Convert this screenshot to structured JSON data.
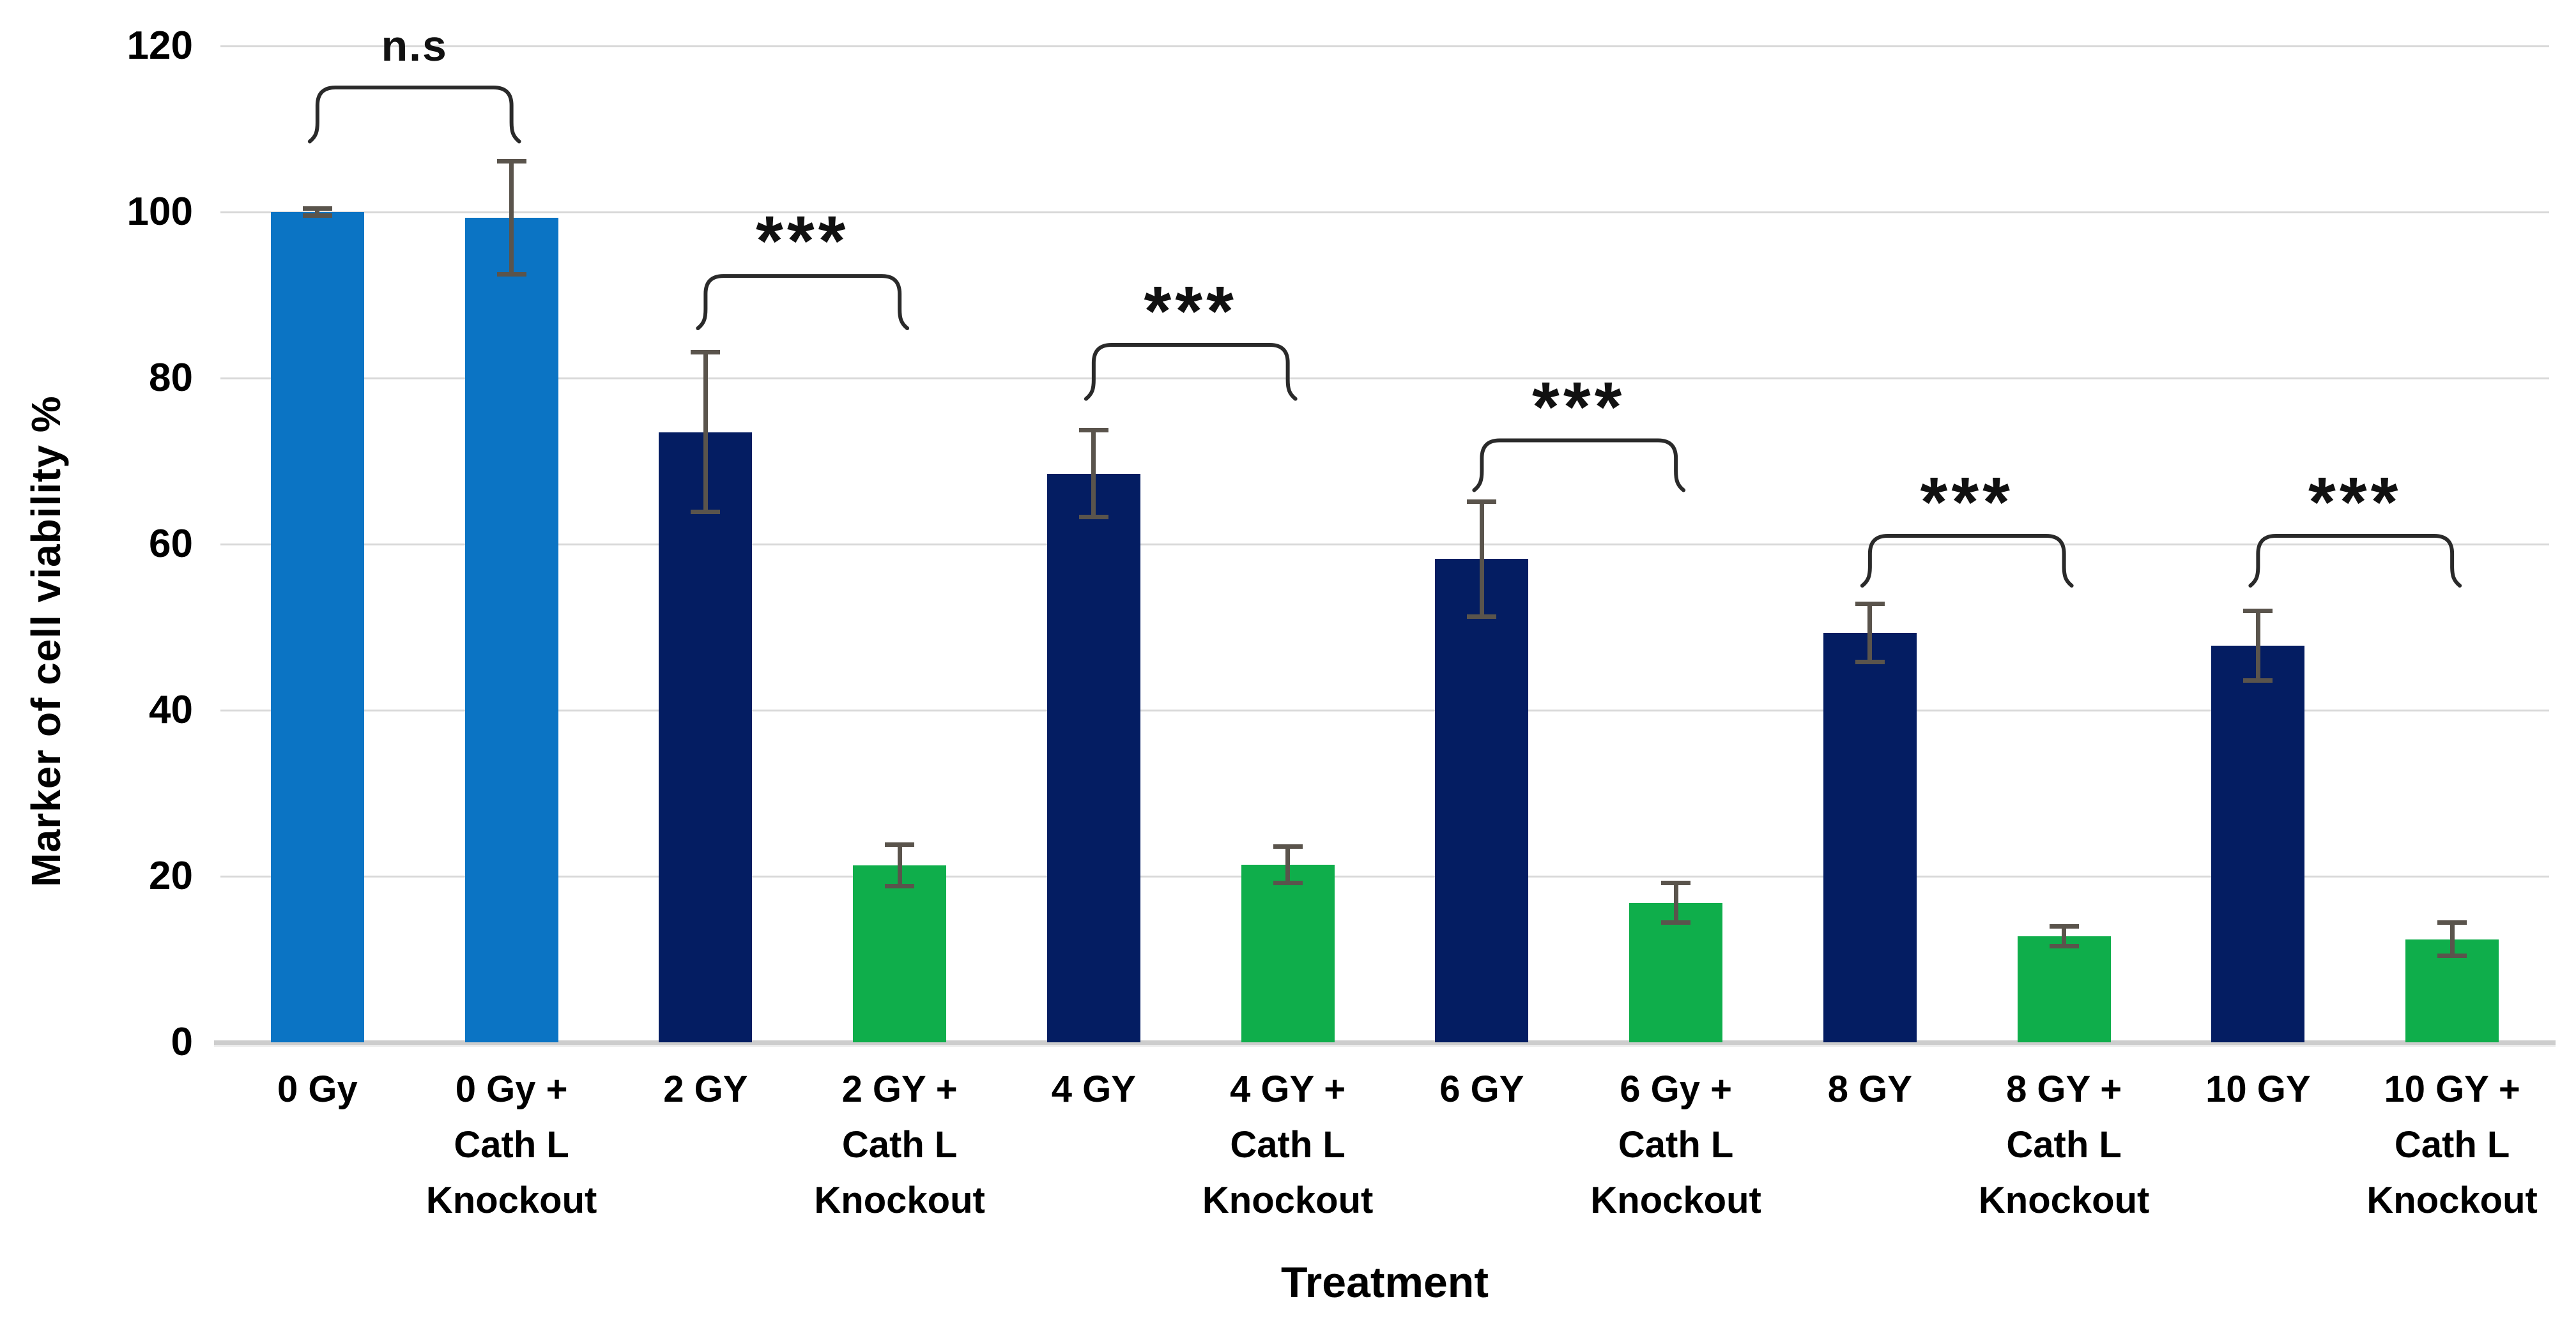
{
  "chart_data": {
    "type": "bar",
    "title": "",
    "ylabel": "Marker of cell viability %",
    "xlabel": "Treatment",
    "ylim": [
      0,
      120
    ],
    "yticks": [
      0,
      20,
      40,
      60,
      80,
      100,
      120
    ],
    "grid": true,
    "legend": "none",
    "categories": [
      "0 Gy",
      "0 Gy + Cath L Knockout",
      "2 GY",
      "2 GY + Cath L Knockout",
      "4 GY",
      "4 GY + Cath L Knockout",
      "6 GY",
      "6 Gy + Cath L Knockout",
      "8 GY",
      "8 GY + Cath L Knockout",
      "10 GY",
      "10 GY + Cath L Knockout"
    ],
    "category_lines": [
      [
        "0 Gy"
      ],
      [
        "0 Gy +",
        "Cath L",
        "Knockout"
      ],
      [
        "2 GY"
      ],
      [
        "2 GY +",
        "Cath L",
        "Knockout"
      ],
      [
        "4 GY"
      ],
      [
        "4 GY +",
        "Cath L",
        "Knockout"
      ],
      [
        "6 GY"
      ],
      [
        "6 Gy +",
        "Cath L",
        "Knockout"
      ],
      [
        "8 GY"
      ],
      [
        "8 GY +",
        "Cath L",
        "Knockout"
      ],
      [
        "10 GY"
      ],
      [
        "10 GY +",
        "Cath L",
        "Knockout"
      ]
    ],
    "values": [
      100,
      99.3,
      73.5,
      21.3,
      68.5,
      21.4,
      58.2,
      16.8,
      49.3,
      12.8,
      47.8,
      12.4
    ],
    "errors": [
      0.4,
      6.8,
      9.6,
      2.5,
      5.2,
      2.2,
      6.9,
      2.4,
      3.5,
      1.2,
      4.2,
      2.0
    ],
    "bar_color_roles": [
      "control",
      "control",
      "irradiated",
      "knockout",
      "irradiated",
      "knockout",
      "irradiated",
      "knockout",
      "irradiated",
      "knockout",
      "irradiated",
      "knockout"
    ],
    "colors": {
      "control": "#0b74c4",
      "irradiated": "#041d62",
      "knockout": "#0fae4b",
      "error_bar": "#5a544c",
      "gridline": "#d8d8d8",
      "axis_line": "#cdcdcd",
      "bracket": "#2a2a2a",
      "text": "#000000"
    },
    "significance": [
      {
        "from": 0,
        "to": 1,
        "label": "n.s",
        "bracket_top": 115.0,
        "bracket_ends": 108.5,
        "label_y": 120.0
      },
      {
        "from": 2,
        "to": 3,
        "label": "***",
        "bracket_top": 92.3,
        "bracket_ends": 86.0,
        "label_y": 96.5
      },
      {
        "from": 4,
        "to": 5,
        "label": "***",
        "bracket_top": 84.0,
        "bracket_ends": 77.5,
        "label_y": 88.0
      },
      {
        "from": 6,
        "to": 7,
        "label": "***",
        "bracket_top": 72.5,
        "bracket_ends": 66.5,
        "label_y": 76.5
      },
      {
        "from": 8,
        "to": 9,
        "label": "***",
        "bracket_top": 61.0,
        "bracket_ends": 55.0,
        "label_y": 65.0
      },
      {
        "from": 10,
        "to": 11,
        "label": "***",
        "bracket_top": 61.0,
        "bracket_ends": 55.0,
        "label_y": 65.0
      }
    ]
  }
}
